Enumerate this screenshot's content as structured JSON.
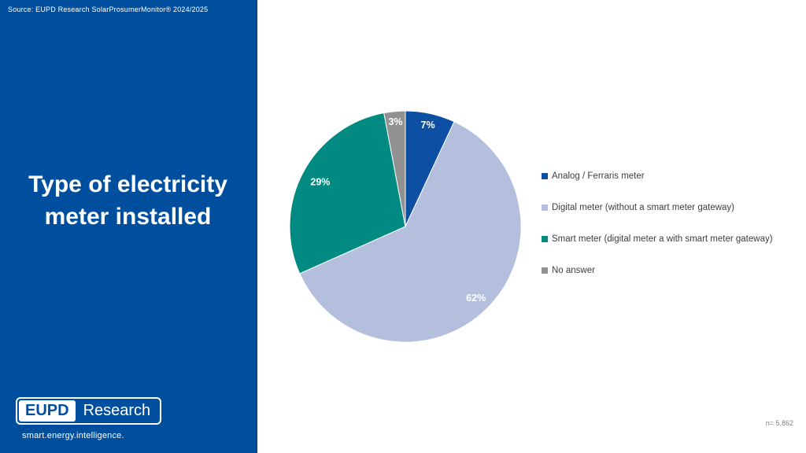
{
  "sidebar": {
    "background": "#004f9f",
    "source_text": "Source: EUPD Research SolarProsumerMonitor® 2024/2025",
    "title": "Type of electricity meter installed",
    "logo": {
      "left": "EUPD",
      "right": "Research",
      "tagline": "smart.energy.intelligence."
    }
  },
  "chart_data": {
    "type": "pie",
    "title": "Type of electricity meter installed",
    "categories": [
      "Analog / Ferraris meter",
      "Digital meter (without a smart meter gateway)",
      "Smart meter (digital meter a with smart meter gateway)",
      "No answer"
    ],
    "values": [
      7,
      62,
      29,
      3
    ],
    "slice_labels": [
      "7%",
      "62%",
      "29%",
      "3%"
    ],
    "colors": [
      "#0d4fa3",
      "#b4bedd",
      "#008a82",
      "#919191"
    ],
    "label_radius_fraction": [
      0.9,
      0.87,
      0.83,
      0.91
    ],
    "start_angle_deg": 0,
    "direction": "clockwise",
    "legend_position": "right",
    "annotation": "n= 5,862"
  }
}
